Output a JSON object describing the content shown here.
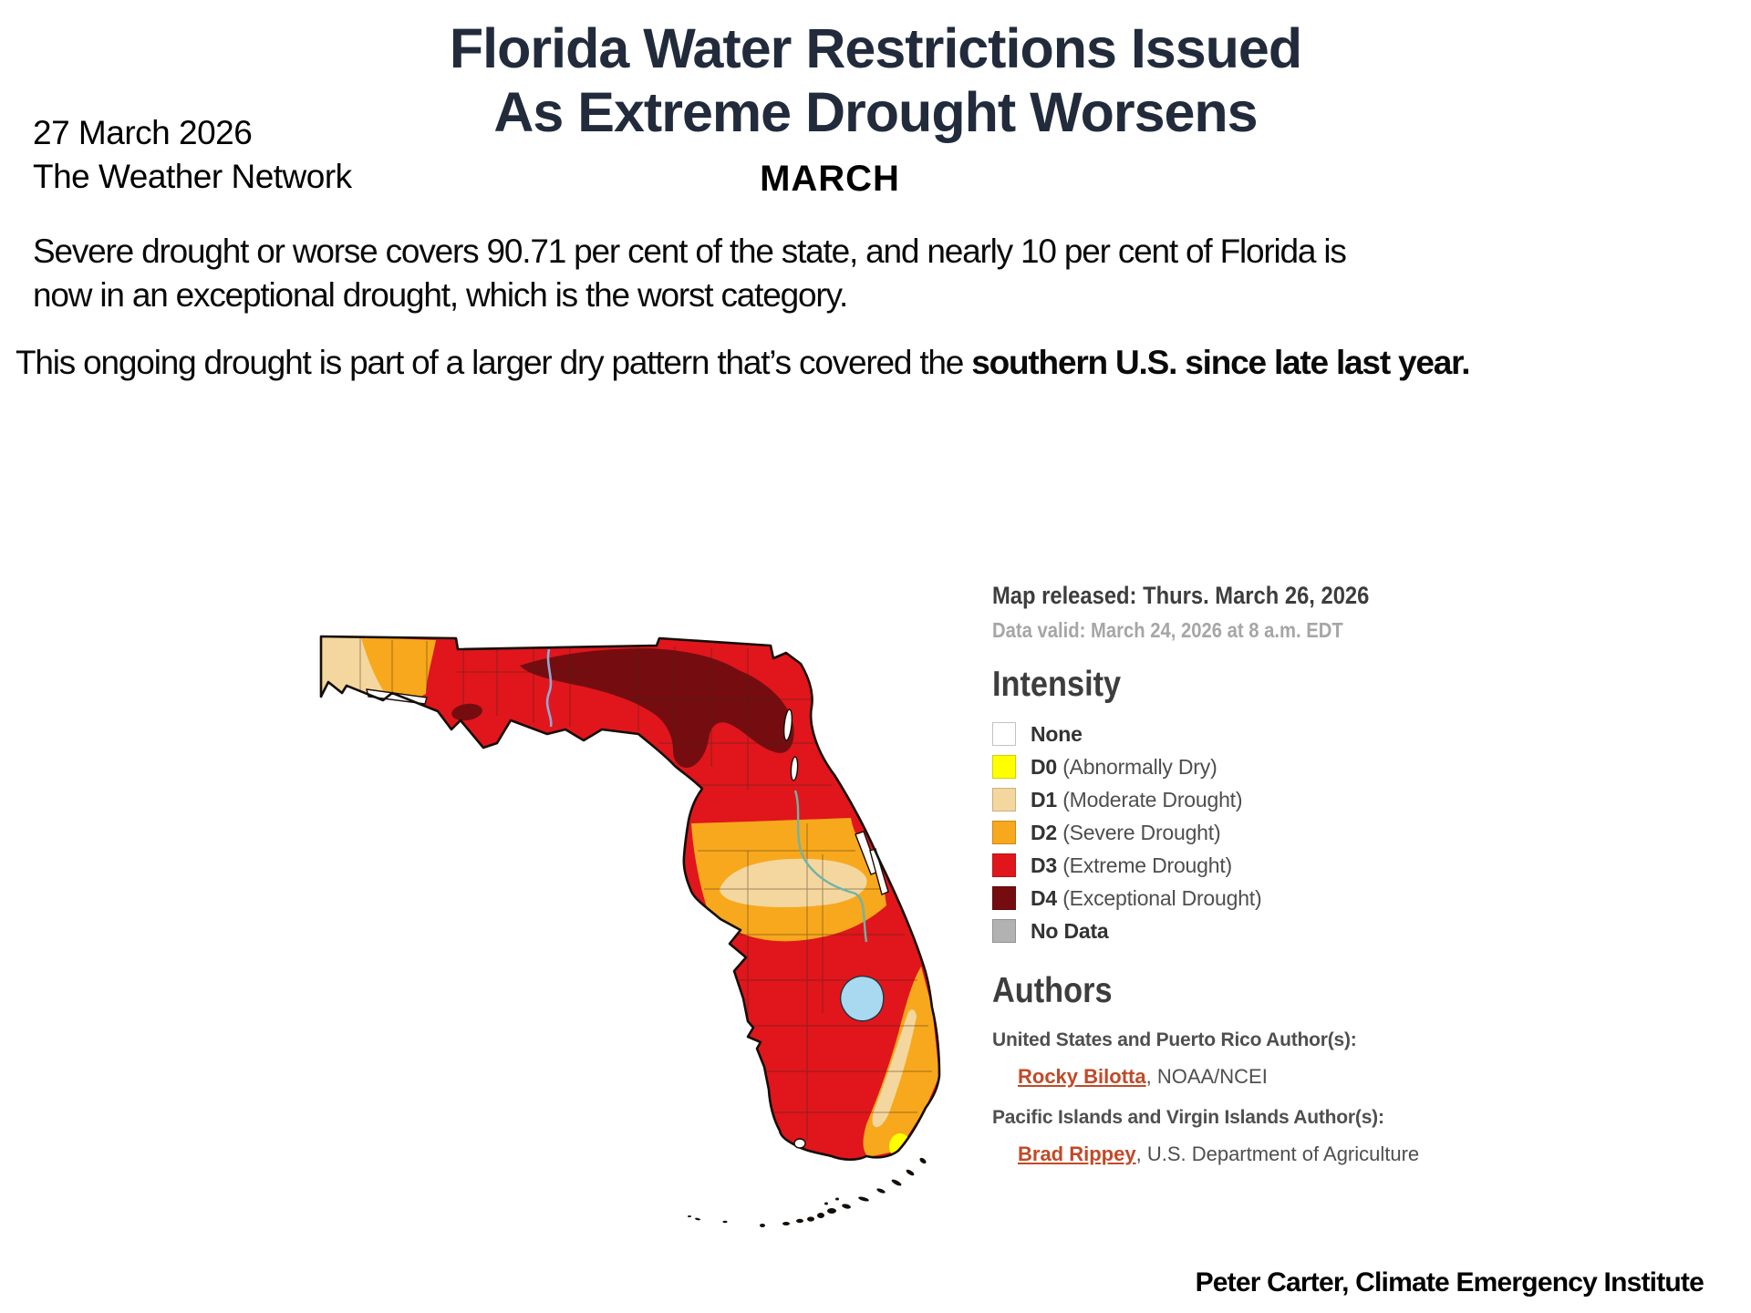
{
  "article": {
    "date": "27 March 2026",
    "source": "The Weather Network",
    "title_line1": "Florida Water Restrictions Issued",
    "title_line2": "As Extreme Drought Worsens",
    "month_label": "MARCH",
    "para1": "Severe drought or worse covers 90.71 per cent of the state, and nearly 10 per cent of Florida is now in an exceptional drought, which is the worst category.",
    "para2_regular": "This ongoing drought is part of a larger dry pattern that’s covered the ",
    "para2_bold": "southern U.S. since late last year.",
    "attribution": "Peter Carter, Climate Emergency Institute"
  },
  "map_panel": {
    "released": "Map released: Thurs. March 26, 2026",
    "valid": "Data valid: March 24, 2026 at 8 a.m. EDT",
    "intensity_title": "Intensity",
    "legend": [
      {
        "code": "",
        "label": "None",
        "color": "#FFFFFF"
      },
      {
        "code": "D0",
        "label": "(Abnormally Dry)",
        "color": "#FFFF00"
      },
      {
        "code": "D1",
        "label": "(Moderate Drought)",
        "color": "#F4D79E"
      },
      {
        "code": "D2",
        "label": "(Severe Drought)",
        "color": "#F7A81C"
      },
      {
        "code": "D3",
        "label": "(Extreme Drought)",
        "color": "#E0161C"
      },
      {
        "code": "D4",
        "label": "(Exceptional Drought)",
        "color": "#750D10"
      },
      {
        "code": "",
        "label": "No Data",
        "color": "#B2B2B2"
      }
    ],
    "authors_title": "Authors",
    "authors": [
      {
        "region": "United States and Puerto Rico Author(s):",
        "name": "Rocky Bilotta",
        "affiliation": ", NOAA/NCEI"
      },
      {
        "region": "Pacific Islands and Virgin Islands Author(s):",
        "name": "Brad Rippey",
        "affiliation": ", U.S. Department of Agriculture"
      }
    ]
  },
  "map": {
    "colors": {
      "lake": "#A8D9F0",
      "river_panhandle": "#8FA8D8",
      "river_peninsula": "#6FB3A8",
      "outline": "#150D07"
    }
  }
}
